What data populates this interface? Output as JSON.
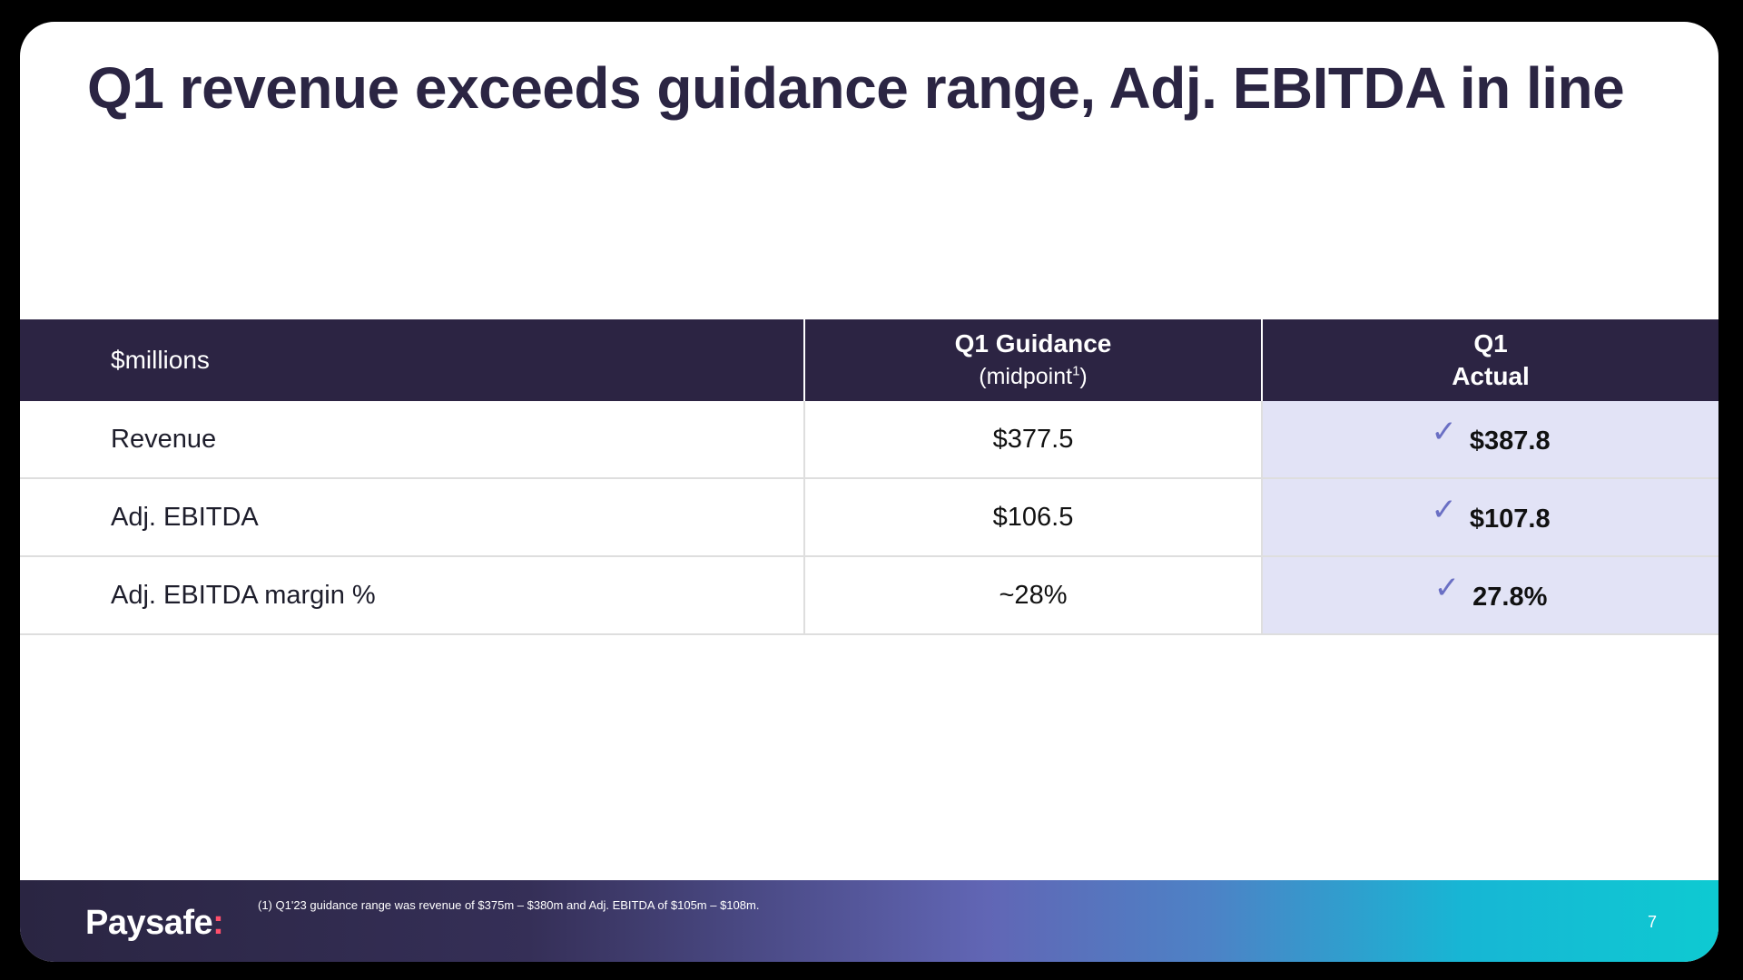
{
  "slide": {
    "title": "Q1 revenue exceeds guidance range, Adj. EBITDA in line"
  },
  "table": {
    "header": {
      "unit_label": "$millions",
      "guidance_label": "Q1 Guidance",
      "guidance_sub": "(midpoint",
      "guidance_sup": "1",
      "guidance_close": ")",
      "actual_line1": "Q1",
      "actual_line2": "Actual"
    },
    "rows": [
      {
        "metric": "Revenue",
        "guidance": "$377.5",
        "actual": "$387.8"
      },
      {
        "metric": "Adj. EBITDA",
        "guidance": "$106.5",
        "actual": "$107.8"
      },
      {
        "metric": "Adj. EBITDA margin %",
        "guidance": "~28%",
        "actual": "27.8%"
      }
    ],
    "check_glyph": "✓"
  },
  "footer": {
    "logo_text": "Paysafe",
    "logo_mark": ":",
    "footnote": "(1) Q1'23 guidance range was revenue of $375m – $380m and Adj. EBITDA of $105m – $108m.",
    "page_number": "7"
  },
  "colors": {
    "title": "#2b2543",
    "header_bg": "#2c2443",
    "actual_bg": "#e2e3f6",
    "check": "#6a6fc4",
    "logo_mark": "#ff4f6b"
  }
}
